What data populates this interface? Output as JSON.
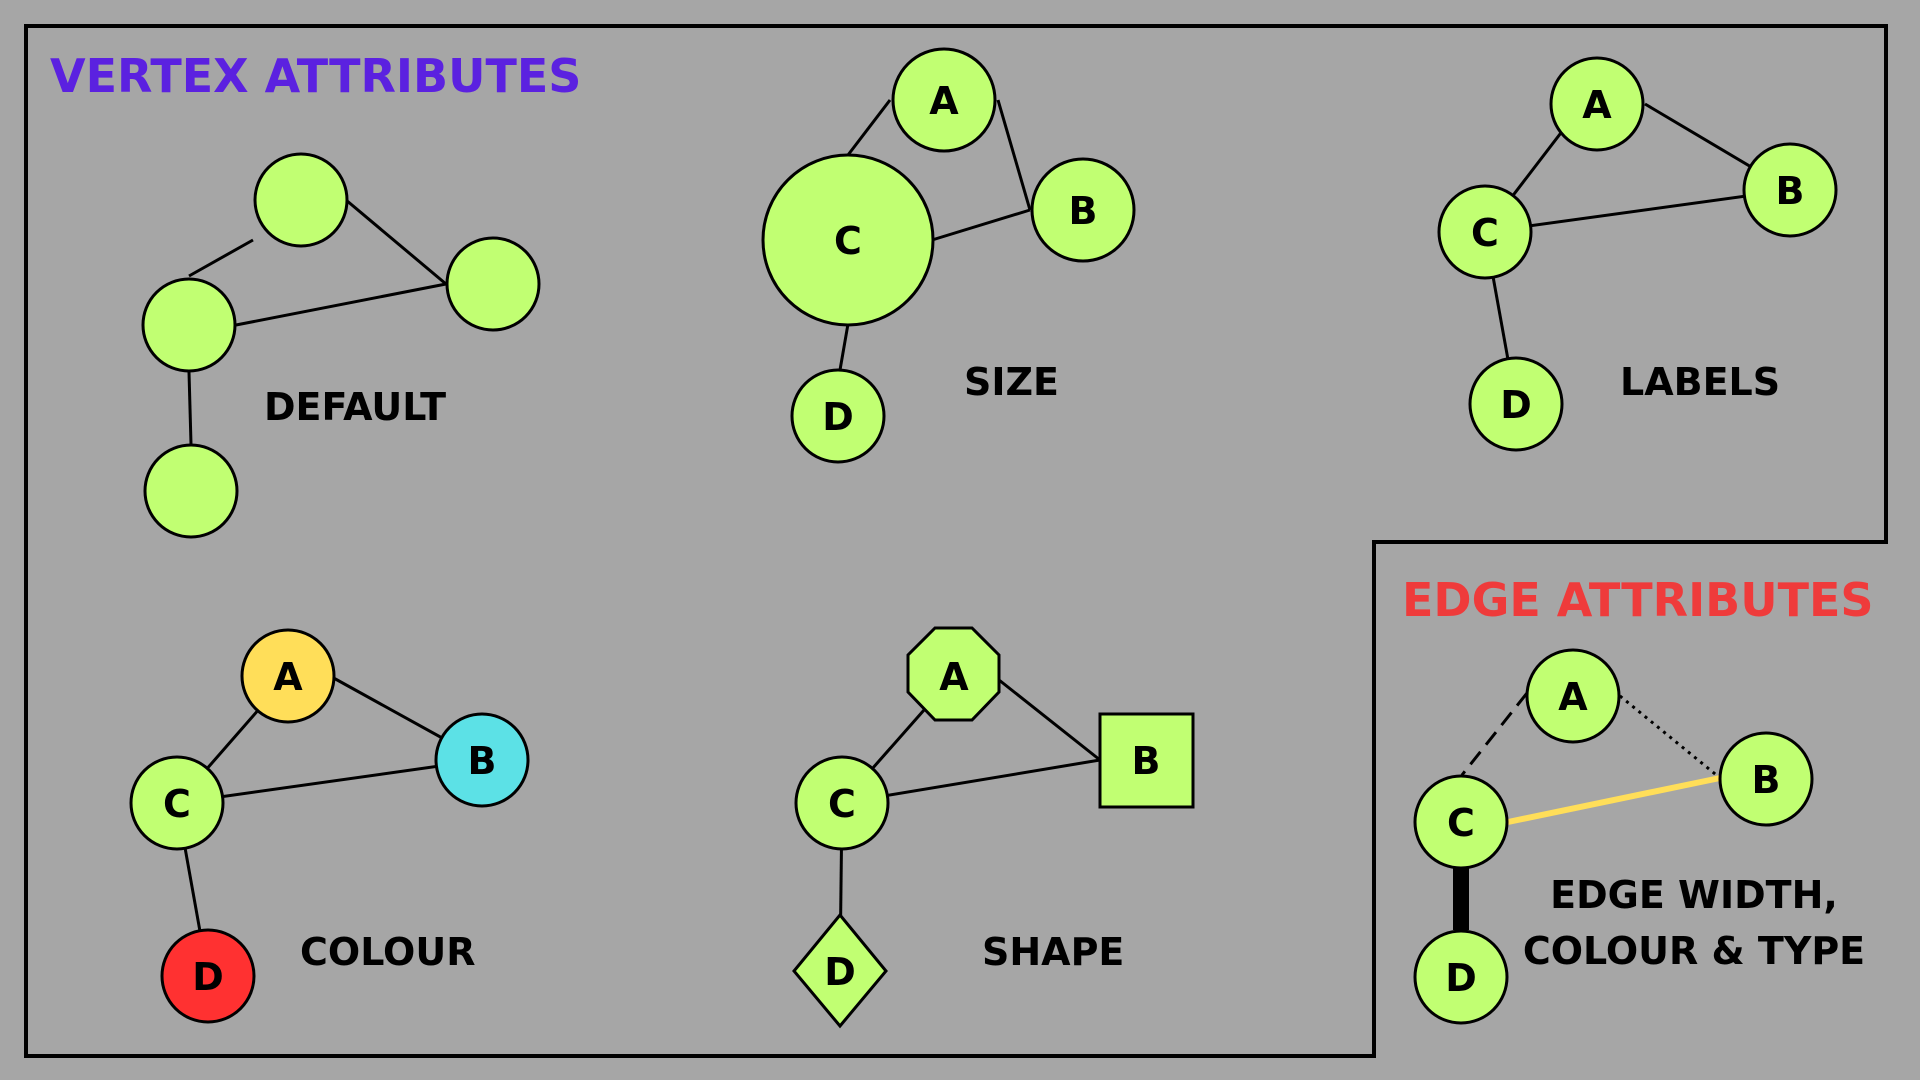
{
  "vertex_section": {
    "heading": "VERTEX ATTRIBUTES",
    "heading_color": "#5b21e0"
  },
  "edge_section": {
    "heading": "EDGE ATTRIBUTES",
    "heading_color": "#ef3b3b"
  },
  "captions": {
    "default": "DEFAULT",
    "size": "SIZE",
    "labels": "LABELS",
    "colour": "COLOUR",
    "shape": "SHAPE",
    "edge_line1": "EDGE WIDTH,",
    "edge_line2": "COLOUR & TYPE"
  },
  "node_labels": {
    "a": "A",
    "b": "B",
    "c": "C",
    "d": "D"
  },
  "colors": {
    "background": "#a6a6a6",
    "node_default": "#c1ff72",
    "node_a_colour": "#ffde59",
    "node_b_colour": "#5ce1e6",
    "node_d_colour": "#ff3131",
    "edge_highlight": "#ffde59",
    "stroke": "#000000"
  },
  "edge_styles": {
    "a_c": "dashed",
    "a_b": "dotted",
    "c_b": "yellow",
    "c_d": "thick"
  }
}
